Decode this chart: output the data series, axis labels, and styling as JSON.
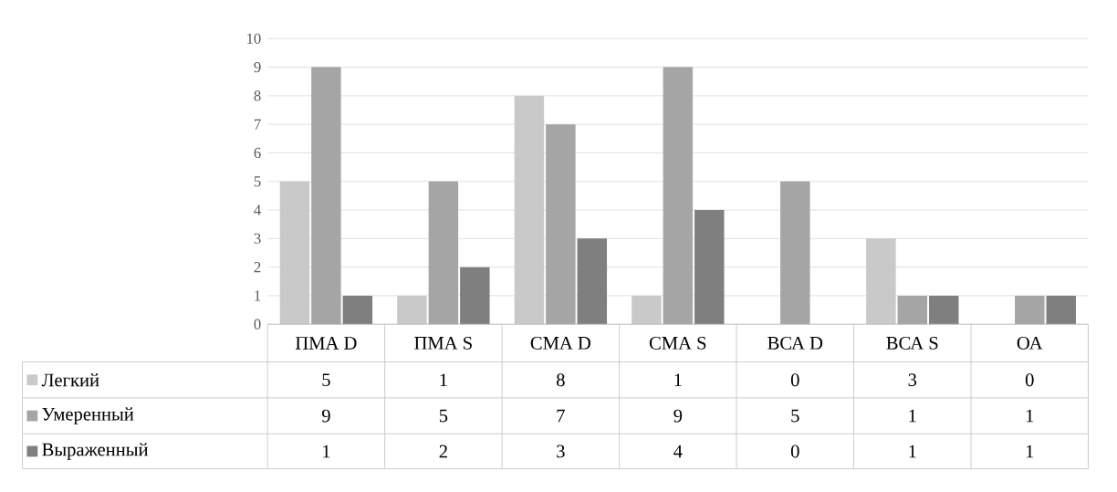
{
  "chart_data": {
    "type": "bar",
    "categories": [
      "ПМА D",
      "ПМА S",
      "СМА D",
      "СМА S",
      "ВСА D",
      "ВСА S",
      "ОА"
    ],
    "series": [
      {
        "name": "Легкий",
        "color": "#c9c9c9",
        "values": [
          5,
          1,
          8,
          1,
          0,
          3,
          0
        ]
      },
      {
        "name": "Умеренный",
        "color": "#a5a5a5",
        "values": [
          9,
          5,
          7,
          9,
          5,
          1,
          1
        ]
      },
      {
        "name": "Выраженный",
        "color": "#7f7f7f",
        "values": [
          1,
          2,
          3,
          4,
          0,
          1,
          1
        ]
      }
    ],
    "ylim": [
      0,
      10
    ],
    "yticks": [
      0,
      1,
      2,
      3,
      4,
      5,
      6,
      7,
      8,
      9,
      10
    ],
    "grid": "y",
    "legend": "bottom left",
    "data_labels": true
  }
}
